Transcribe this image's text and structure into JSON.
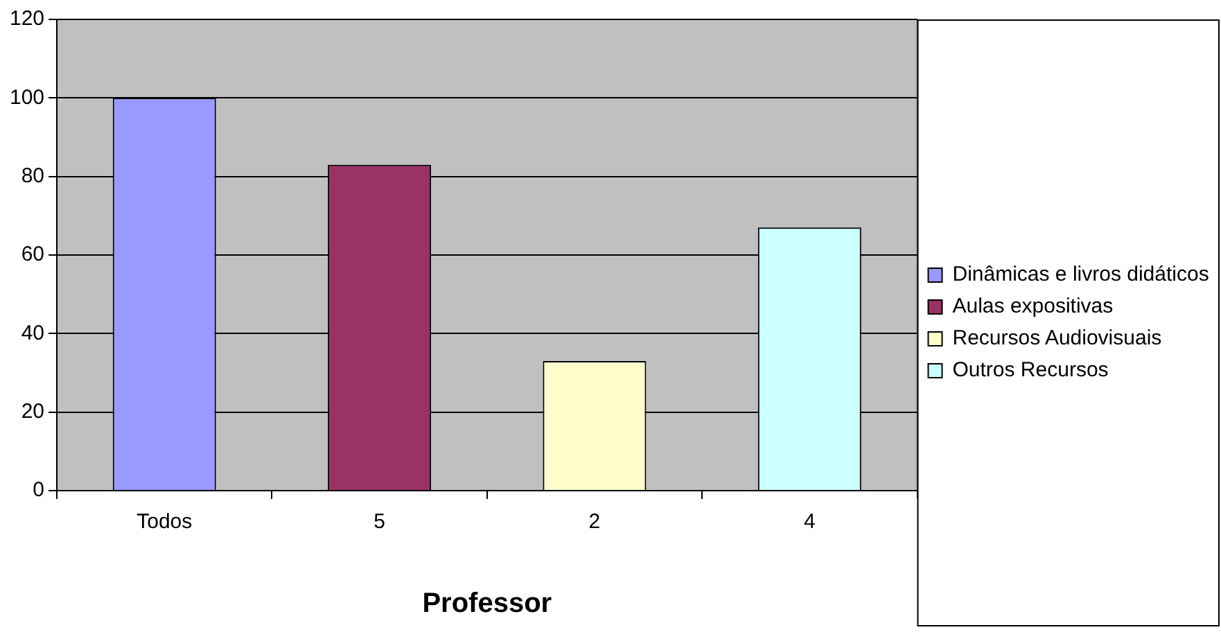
{
  "chart_data": {
    "type": "bar",
    "xlabel": "Professor",
    "categories": [
      "Todos",
      "5",
      "2",
      "4"
    ],
    "series": [
      {
        "name": "Dinâmicas e livros didáticos",
        "color": "#9999ff",
        "values": [
          100,
          null,
          null,
          null
        ]
      },
      {
        "name": "Aulas expositivas",
        "color": "#993366",
        "values": [
          null,
          83,
          null,
          null
        ]
      },
      {
        "name": "Recursos Audiovisuais",
        "color": "#ffffcc",
        "values": [
          null,
          null,
          33,
          null
        ]
      },
      {
        "name": "Outros Recursos",
        "color": "#ccffff",
        "values": [
          null,
          null,
          null,
          67
        ]
      }
    ],
    "ylim": [
      0,
      120
    ],
    "yticks": [
      0,
      20,
      40,
      60,
      80,
      100,
      120
    ],
    "grid": "y",
    "legend": "right"
  }
}
